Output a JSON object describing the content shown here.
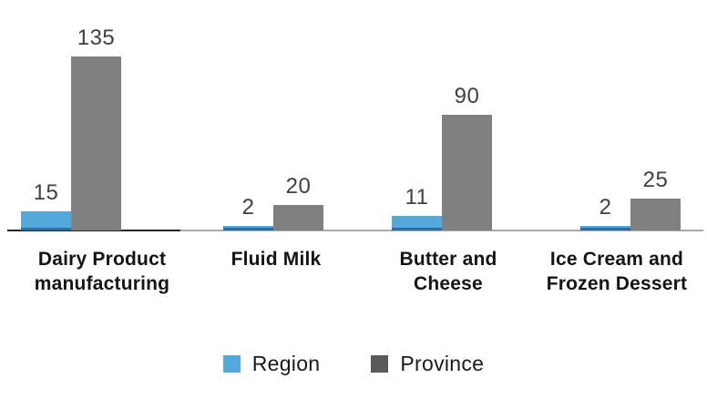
{
  "chart_data": {
    "type": "bar",
    "categories": [
      "Dairy Product manufacturing",
      "Fluid Milk",
      "Butter and Cheese",
      "Ice Cream and Frozen Dessert"
    ],
    "category_display_lines": [
      [
        "Dairy Product",
        "manufacturing"
      ],
      [
        "Fluid Milk"
      ],
      [
        "Butter and",
        "Cheese"
      ],
      [
        "Ice Cream and",
        "Frozen Dessert"
      ]
    ],
    "series": [
      {
        "name": "Region",
        "color": "#54a9dc",
        "legend_color": "#54a9dc",
        "values": [
          15,
          2,
          11,
          2
        ]
      },
      {
        "name": "Province",
        "color": "#808080",
        "legend_color": "#595959",
        "values": [
          135,
          20,
          90,
          25
        ]
      }
    ],
    "value_labels": true,
    "ylim": [
      0,
      140
    ],
    "grid": false,
    "legend_position": "bottom",
    "title": "",
    "xlabel": "",
    "ylabel": ""
  },
  "colors": {
    "region_bar": "#54a9dc",
    "region_bar_edge": "#2e6da0",
    "province_bar": "#808080",
    "province_legend_swatch": "#595959",
    "value_label_text": "#404040",
    "category_label_text": "#141414",
    "axis_dark_segment": "#262626",
    "axis_light_segment": "#ababab",
    "background": "#ffffff"
  }
}
